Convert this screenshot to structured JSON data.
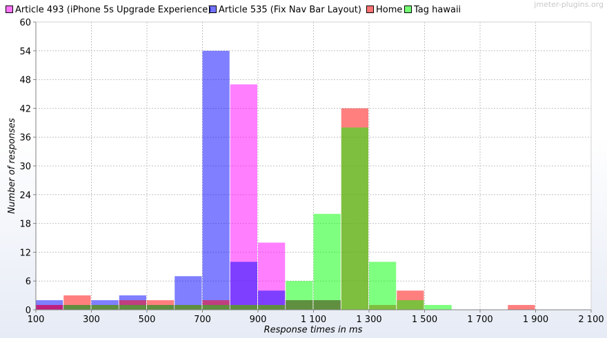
{
  "watermark": "jmeter-plugins.org",
  "chart_data": {
    "type": "bar",
    "title": "",
    "xlabel": "Response times in ms",
    "ylabel": "Number of responses",
    "xlim": [
      100,
      2100
    ],
    "ylim": [
      0,
      60
    ],
    "bin_width": 100,
    "x_ticks": [
      100,
      300,
      500,
      700,
      900,
      1100,
      1300,
      1500,
      1700,
      1900,
      2100
    ],
    "x_tick_labels": [
      "100",
      "300",
      "500",
      "700",
      "900",
      "1 100",
      "1 300",
      "1 500",
      "1 700",
      "1 900",
      "2 100"
    ],
    "y_ticks": [
      0,
      6,
      12,
      18,
      24,
      30,
      36,
      42,
      48,
      54,
      60
    ],
    "grid": true,
    "legend_position": "top",
    "bin_starts": [
      100,
      200,
      300,
      400,
      500,
      600,
      700,
      800,
      900,
      1000,
      1100,
      1200,
      1300,
      1400,
      1500,
      1600,
      1700,
      1800,
      1900,
      2000
    ],
    "series": [
      {
        "name": "Article 493 (iPhone 5s Upgrade Experience)",
        "color": "#ff00ff",
        "values": [
          1,
          1,
          1,
          1,
          1,
          1,
          1,
          47,
          14,
          2,
          2,
          0,
          0,
          0,
          0,
          0,
          0,
          0,
          0,
          0
        ]
      },
      {
        "name": "Article 535 (Fix Nav Bar Layout)",
        "color": "#0000ff",
        "values": [
          2,
          1,
          2,
          3,
          1,
          7,
          54,
          10,
          4,
          2,
          2,
          0,
          0,
          0,
          0,
          0,
          0,
          0,
          0,
          0
        ]
      },
      {
        "name": "Home",
        "color": "#ff0000",
        "values": [
          1,
          3,
          1,
          2,
          2,
          1,
          2,
          1,
          1,
          2,
          2,
          42,
          1,
          4,
          0,
          0,
          0,
          1,
          0,
          0
        ]
      },
      {
        "name": "Tag hawaii",
        "color": "#00ff00",
        "values": [
          0,
          1,
          1,
          1,
          1,
          1,
          1,
          1,
          1,
          6,
          20,
          38,
          10,
          2,
          1,
          0,
          0,
          0,
          0,
          0
        ]
      }
    ]
  }
}
